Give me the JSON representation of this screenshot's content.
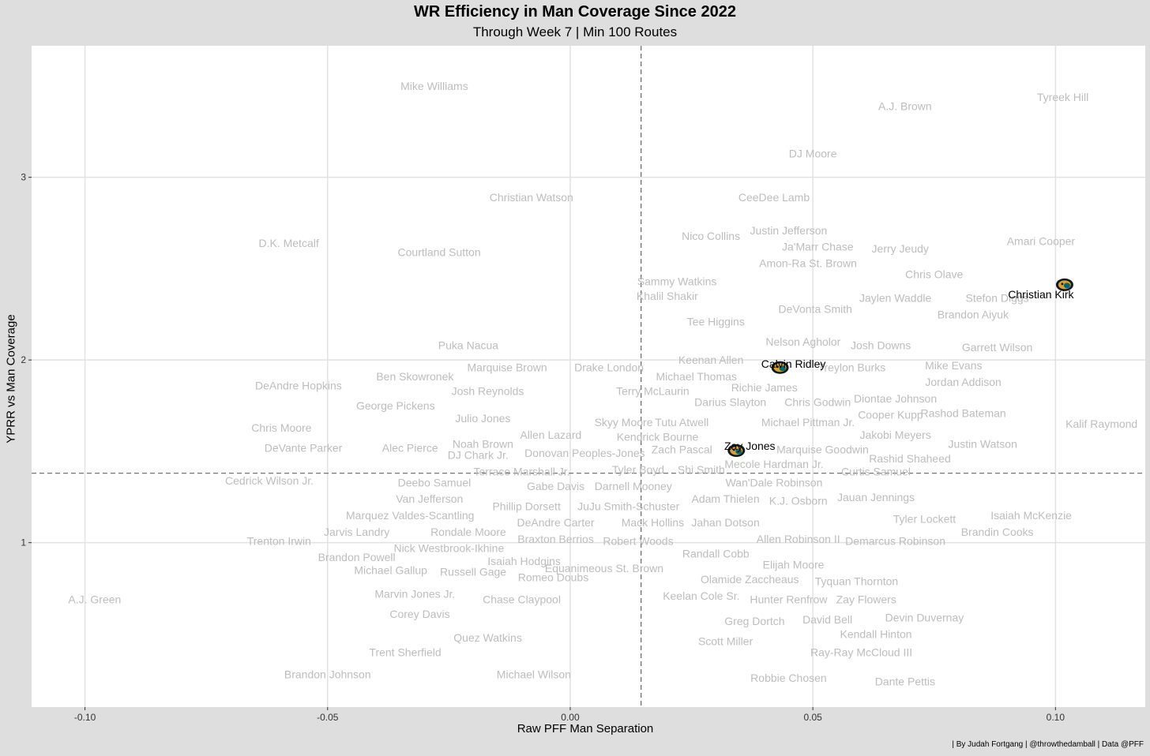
{
  "chart_data": {
    "type": "scatter",
    "title": "WR Efficiency in Man Coverage Since 2022",
    "subtitle": "Through Week 7 | Min 100 Routes",
    "xlabel": "Raw PFF Man Separation",
    "ylabel": "YPRR vs Man Coverage",
    "caption": "| By Judah Fortgang | @throwthedamball | Data @PFF",
    "xlim": [
      -0.111,
      0.1185
    ],
    "ylim": [
      0.1,
      3.72
    ],
    "xticks": [
      -0.1,
      -0.05,
      0.0,
      0.05,
      0.1
    ],
    "xtick_labels": [
      "-0.10",
      "-0.05",
      "0.00",
      "0.05",
      "0.10"
    ],
    "yticks": [
      1,
      2,
      3
    ],
    "ytick_labels": [
      "1",
      "2",
      "3"
    ],
    "grid": true,
    "vline": 0.0146,
    "hline": 1.38,
    "label_color": "#bdbdbd",
    "highlight_color": "#000000",
    "highlight_icon": "jaguars-logo-icon",
    "points": [
      {
        "name": "Tyreek Hill",
        "x": 0.1015,
        "y": 3.44
      },
      {
        "name": "A.J. Brown",
        "x": 0.069,
        "y": 3.39
      },
      {
        "name": "Mike Williams",
        "x": -0.028,
        "y": 3.5
      },
      {
        "name": "DJ Moore",
        "x": 0.05,
        "y": 3.13
      },
      {
        "name": "CeeDee Lamb",
        "x": 0.042,
        "y": 2.89
      },
      {
        "name": "Christian Watson",
        "x": -0.008,
        "y": 2.89
      },
      {
        "name": "Amari Cooper",
        "x": 0.097,
        "y": 2.65
      },
      {
        "name": "Justin Jefferson",
        "x": 0.045,
        "y": 2.71
      },
      {
        "name": "Nico Collins",
        "x": 0.029,
        "y": 2.68
      },
      {
        "name": "D.K. Metcalf",
        "x": -0.058,
        "y": 2.64
      },
      {
        "name": "Ja'Marr Chase",
        "x": 0.051,
        "y": 2.62
      },
      {
        "name": "Jerry Jeudy",
        "x": 0.068,
        "y": 2.61
      },
      {
        "name": "Courtland Sutton",
        "x": -0.027,
        "y": 2.59
      },
      {
        "name": "Amon-Ra St. Brown",
        "x": 0.049,
        "y": 2.53
      },
      {
        "name": "Chris Olave",
        "x": 0.075,
        "y": 2.47
      },
      {
        "name": "Sammy Watkins",
        "x": 0.022,
        "y": 2.43
      },
      {
        "name": "Khalil Shakir",
        "x": 0.02,
        "y": 2.35
      },
      {
        "name": "Jaylen Waddle",
        "x": 0.067,
        "y": 2.34
      },
      {
        "name": "Stefon Diggs",
        "x": 0.088,
        "y": 2.34
      },
      {
        "name": "DeVonta Smith",
        "x": 0.0505,
        "y": 2.28
      },
      {
        "name": "Brandon Aiyuk",
        "x": 0.083,
        "y": 2.25
      },
      {
        "name": "Christian Kirk",
        "x": 0.097,
        "y": 2.36,
        "highlight": true,
        "icon_dx": 30,
        "icon_dy": -12
      },
      {
        "name": "Tee Higgins",
        "x": 0.03,
        "y": 2.21
      },
      {
        "name": "Nelson Agholor",
        "x": 0.048,
        "y": 2.1
      },
      {
        "name": "Josh Downs",
        "x": 0.064,
        "y": 2.08
      },
      {
        "name": "Garrett Wilson",
        "x": 0.088,
        "y": 2.07
      },
      {
        "name": "Puka Nacua",
        "x": -0.021,
        "y": 2.08
      },
      {
        "name": "Keenan Allen",
        "x": 0.029,
        "y": 2.0
      },
      {
        "name": "Calvin Ridley",
        "x": 0.046,
        "y": 1.98,
        "highlight": true,
        "icon_dx": -17,
        "icon_dy": 5
      },
      {
        "name": "Marquise Brown",
        "x": -0.013,
        "y": 1.96
      },
      {
        "name": "Drake London",
        "x": 0.008,
        "y": 1.96
      },
      {
        "name": "Treylon Burks",
        "x": 0.058,
        "y": 1.96
      },
      {
        "name": "Mike Evans",
        "x": 0.079,
        "y": 1.97
      },
      {
        "name": "Michael Thomas",
        "x": 0.026,
        "y": 1.91
      },
      {
        "name": "Ben Skowronek",
        "x": -0.032,
        "y": 1.91
      },
      {
        "name": "Jordan Addison",
        "x": 0.081,
        "y": 1.88
      },
      {
        "name": "DeAndre Hopkins",
        "x": -0.056,
        "y": 1.86
      },
      {
        "name": "Richie James",
        "x": 0.04,
        "y": 1.85
      },
      {
        "name": "Terry McLaurin",
        "x": 0.017,
        "y": 1.83
      },
      {
        "name": "Josh Reynolds",
        "x": -0.017,
        "y": 1.83
      },
      {
        "name": "Diontae Johnson",
        "x": 0.067,
        "y": 1.79
      },
      {
        "name": "Darius Slayton",
        "x": 0.033,
        "y": 1.77
      },
      {
        "name": "Chris Godwin",
        "x": 0.051,
        "y": 1.77
      },
      {
        "name": "George Pickens",
        "x": -0.036,
        "y": 1.75
      },
      {
        "name": "Rashod Bateman",
        "x": 0.081,
        "y": 1.71
      },
      {
        "name": "Cooper Kupp",
        "x": 0.066,
        "y": 1.7
      },
      {
        "name": "Kalif Raymond",
        "x": 0.1095,
        "y": 1.65
      },
      {
        "name": "Julio Jones",
        "x": -0.018,
        "y": 1.68
      },
      {
        "name": "Skyy Moore",
        "x": 0.011,
        "y": 1.66
      },
      {
        "name": "Tutu Atwell",
        "x": 0.023,
        "y": 1.66
      },
      {
        "name": "Michael Pittman Jr.",
        "x": 0.049,
        "y": 1.66
      },
      {
        "name": "Chris Moore",
        "x": -0.0595,
        "y": 1.63
      },
      {
        "name": "Allen Lazard",
        "x": -0.004,
        "y": 1.59
      },
      {
        "name": "Kendrick Bourne",
        "x": 0.018,
        "y": 1.58
      },
      {
        "name": "Zay Jones",
        "x": 0.037,
        "y": 1.53,
        "highlight": true,
        "icon_dx": -17,
        "icon_dy": 6
      },
      {
        "name": "Jakobi Meyers",
        "x": 0.067,
        "y": 1.59
      },
      {
        "name": "Noah Brown",
        "x": -0.018,
        "y": 1.54
      },
      {
        "name": "Justin Watson",
        "x": 0.085,
        "y": 1.54
      },
      {
        "name": "Alec Pierce",
        "x": -0.033,
        "y": 1.52
      },
      {
        "name": "DeVante Parker",
        "x": -0.055,
        "y": 1.52
      },
      {
        "name": "Marquise Goodwin",
        "x": 0.052,
        "y": 1.51
      },
      {
        "name": "Zach Pascal",
        "x": 0.023,
        "y": 1.51
      },
      {
        "name": "Donovan Peoples-Jones",
        "x": 0.003,
        "y": 1.49
      },
      {
        "name": "DJ Chark Jr.",
        "x": -0.019,
        "y": 1.48
      },
      {
        "name": "Rashid Shaheed",
        "x": 0.07,
        "y": 1.46
      },
      {
        "name": "Mecole Hardman Jr.",
        "x": 0.042,
        "y": 1.43
      },
      {
        "name": "Tyler Boyd",
        "x": 0.014,
        "y": 1.4
      },
      {
        "name": "Shi Smith",
        "x": 0.027,
        "y": 1.4
      },
      {
        "name": "Terrace Marshall Jr.",
        "x": -0.01,
        "y": 1.39
      },
      {
        "name": "Curtis Samuel",
        "x": 0.063,
        "y": 1.39
      },
      {
        "name": "Cedrick Wilson Jr.",
        "x": -0.062,
        "y": 1.34
      },
      {
        "name": "Deebo Samuel",
        "x": -0.028,
        "y": 1.33
      },
      {
        "name": "Wan'Dale Robinson",
        "x": 0.042,
        "y": 1.33
      },
      {
        "name": "Gabe Davis",
        "x": -0.003,
        "y": 1.31
      },
      {
        "name": "Darnell Mooney",
        "x": 0.013,
        "y": 1.31
      },
      {
        "name": "Van Jefferson",
        "x": -0.029,
        "y": 1.24
      },
      {
        "name": "Jauan Jennings",
        "x": 0.063,
        "y": 1.25
      },
      {
        "name": "Adam Thielen",
        "x": 0.032,
        "y": 1.24
      },
      {
        "name": "K.J. Osborn",
        "x": 0.047,
        "y": 1.23
      },
      {
        "name": "Phillip Dorsett",
        "x": -0.009,
        "y": 1.2
      },
      {
        "name": "JuJu Smith-Schuster",
        "x": 0.012,
        "y": 1.2
      },
      {
        "name": "Isaiah McKenzie",
        "x": 0.095,
        "y": 1.15
      },
      {
        "name": "Marquez Valdes-Scantling",
        "x": -0.033,
        "y": 1.15
      },
      {
        "name": "Tyler Lockett",
        "x": 0.073,
        "y": 1.13
      },
      {
        "name": "DeAndre Carter",
        "x": -0.003,
        "y": 1.11
      },
      {
        "name": "Mack Hollins",
        "x": 0.017,
        "y": 1.11
      },
      {
        "name": "Jahan Dotson",
        "x": 0.032,
        "y": 1.11
      },
      {
        "name": "Jarvis Landry",
        "x": -0.044,
        "y": 1.06
      },
      {
        "name": "Rondale Moore",
        "x": -0.021,
        "y": 1.06
      },
      {
        "name": "Brandin Cooks",
        "x": 0.088,
        "y": 1.06
      },
      {
        "name": "Braxton Berrios",
        "x": -0.003,
        "y": 1.02
      },
      {
        "name": "Allen Robinson II",
        "x": 0.047,
        "y": 1.02
      },
      {
        "name": "Robert Woods",
        "x": 0.014,
        "y": 1.01
      },
      {
        "name": "Demarcus Robinson",
        "x": 0.067,
        "y": 1.01
      },
      {
        "name": "Trenton Irwin",
        "x": -0.06,
        "y": 1.01
      },
      {
        "name": "Nick Westbrook-Ikhine",
        "x": -0.025,
        "y": 0.97
      },
      {
        "name": "Randall Cobb",
        "x": 0.03,
        "y": 0.94
      },
      {
        "name": "Brandon Powell",
        "x": -0.044,
        "y": 0.92
      },
      {
        "name": "Isaiah Hodgins",
        "x": -0.0095,
        "y": 0.9
      },
      {
        "name": "Elijah Moore",
        "x": 0.046,
        "y": 0.88
      },
      {
        "name": "Equanimeous St. Brown",
        "x": 0.007,
        "y": 0.86
      },
      {
        "name": "Michael Gallup",
        "x": -0.037,
        "y": 0.85
      },
      {
        "name": "Russell Gage",
        "x": -0.02,
        "y": 0.84
      },
      {
        "name": "Olamide Zaccheaus",
        "x": 0.037,
        "y": 0.8
      },
      {
        "name": "Romeo Doubs",
        "x": -0.0035,
        "y": 0.81
      },
      {
        "name": "Tyquan Thornton",
        "x": 0.059,
        "y": 0.79
      },
      {
        "name": "Keelan Cole Sr.",
        "x": 0.027,
        "y": 0.71
      },
      {
        "name": "A.J. Green",
        "x": -0.098,
        "y": 0.69
      },
      {
        "name": "Marvin Jones Jr.",
        "x": -0.032,
        "y": 0.72
      },
      {
        "name": "Chase Claypool",
        "x": -0.01,
        "y": 0.69
      },
      {
        "name": "Hunter Renfrow",
        "x": 0.045,
        "y": 0.69
      },
      {
        "name": "Zay Flowers",
        "x": 0.061,
        "y": 0.69
      },
      {
        "name": "Corey Davis",
        "x": -0.031,
        "y": 0.61
      },
      {
        "name": "Devin Duvernay",
        "x": 0.073,
        "y": 0.59
      },
      {
        "name": "David Bell",
        "x": 0.053,
        "y": 0.58
      },
      {
        "name": "Greg Dortch",
        "x": 0.038,
        "y": 0.57
      },
      {
        "name": "Kendall Hinton",
        "x": 0.063,
        "y": 0.5
      },
      {
        "name": "Quez Watkins",
        "x": -0.017,
        "y": 0.48
      },
      {
        "name": "Scott Miller",
        "x": 0.032,
        "y": 0.46
      },
      {
        "name": "Trent Sherfield",
        "x": -0.034,
        "y": 0.4
      },
      {
        "name": "Ray-Ray McCloud III",
        "x": 0.06,
        "y": 0.4
      },
      {
        "name": "Brandon Johnson",
        "x": -0.05,
        "y": 0.28
      },
      {
        "name": "Michael Wilson",
        "x": -0.0075,
        "y": 0.28
      },
      {
        "name": "Robbie Chosen",
        "x": 0.045,
        "y": 0.26
      },
      {
        "name": "Dante Pettis",
        "x": 0.069,
        "y": 0.24
      }
    ]
  }
}
